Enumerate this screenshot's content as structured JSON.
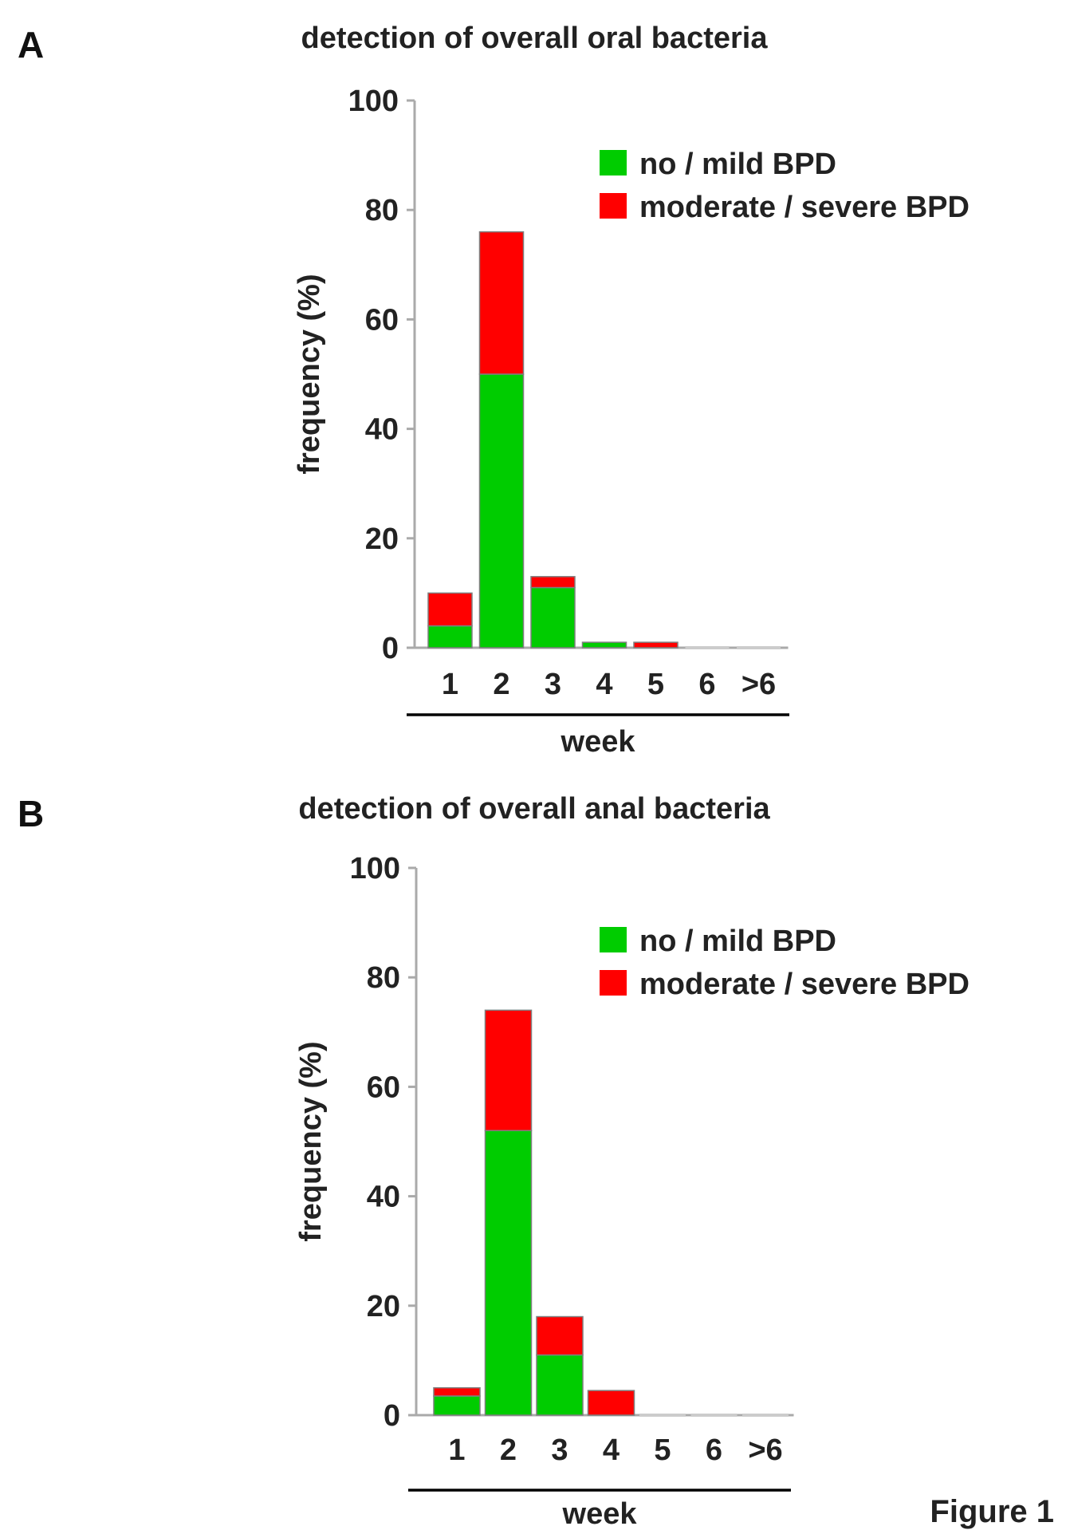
{
  "figure_label": "Figure 1",
  "colors": {
    "no_mild": "#00cc00",
    "moderate_severe": "#ff0000",
    "axis": "#aaaaaa",
    "bar_border": "#7f7f7f"
  },
  "chart_data": [
    {
      "panel": "A",
      "type": "bar",
      "stacked": true,
      "title": "detection of overall oral bacteria",
      "xlabel": "week",
      "ylabel": "frequency (%)",
      "ylim": [
        0,
        100
      ],
      "yticks": [
        0,
        20,
        40,
        60,
        80,
        100
      ],
      "categories": [
        "1",
        "2",
        "3",
        "4",
        "5",
        "6",
        ">6"
      ],
      "legend_position": "top-right",
      "series": [
        {
          "name": "no / mild BPD",
          "color": "#00cc00",
          "values": [
            4,
            50,
            11,
            1,
            0,
            0,
            0
          ]
        },
        {
          "name": "moderate / severe BPD",
          "color": "#ff0000",
          "values": [
            6,
            26,
            2,
            0,
            1,
            0,
            0
          ]
        }
      ]
    },
    {
      "panel": "B",
      "type": "bar",
      "stacked": true,
      "title": "detection of overall anal bacteria",
      "xlabel": "week",
      "ylabel": "frequency (%)",
      "ylim": [
        0,
        100
      ],
      "yticks": [
        0,
        20,
        40,
        60,
        80,
        100
      ],
      "categories": [
        "1",
        "2",
        "3",
        "4",
        "5",
        "6",
        ">6"
      ],
      "legend_position": "top-right",
      "series": [
        {
          "name": "no / mild BPD",
          "color": "#00cc00",
          "values": [
            3.5,
            52,
            11,
            0,
            0,
            0,
            0
          ]
        },
        {
          "name": "moderate / severe BPD",
          "color": "#ff0000",
          "values": [
            1.5,
            22,
            7,
            4.5,
            0,
            0,
            0
          ]
        }
      ]
    }
  ]
}
